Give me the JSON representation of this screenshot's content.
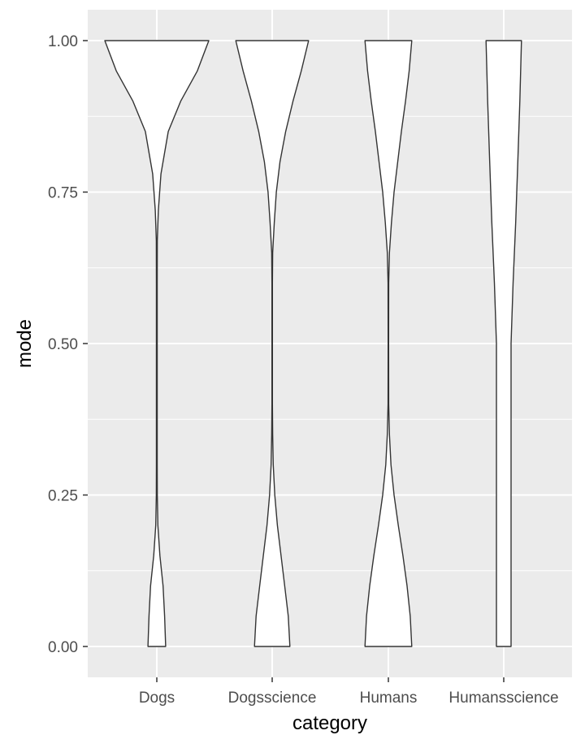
{
  "chart_data": {
    "type": "violin",
    "title": "",
    "xlabel": "category",
    "ylabel": "mode",
    "categories": [
      "Dogs",
      "Dogsscience",
      "Humans",
      "Humansscience"
    ],
    "ylim": [
      -0.05,
      1.05
    ],
    "y_ticks": [
      0,
      0.25,
      0.5,
      0.75,
      1
    ],
    "y_tick_labels": [
      "0.00",
      "0.25",
      "0.50",
      "0.75",
      "1.00"
    ],
    "grid": true,
    "panel_background": "#ebebeb",
    "grid_color": "#ffffff",
    "violin_fill": "#ffffff",
    "violin_stroke": "#333333",
    "violins": [
      {
        "category": "Dogs",
        "profile": [
          [
            0,
            0.17
          ],
          [
            0.05,
            0.15
          ],
          [
            0.1,
            0.12
          ],
          [
            0.15,
            0.06
          ],
          [
            0.2,
            0.02
          ],
          [
            0.25,
            0.01
          ],
          [
            0.3,
            0.008
          ],
          [
            0.4,
            0.008
          ],
          [
            0.5,
            0.008
          ],
          [
            0.6,
            0.008
          ],
          [
            0.67,
            0.01
          ],
          [
            0.72,
            0.03
          ],
          [
            0.78,
            0.08
          ],
          [
            0.85,
            0.22
          ],
          [
            0.9,
            0.46
          ],
          [
            0.95,
            0.78
          ],
          [
            1.0,
            1.0
          ]
        ]
      },
      {
        "category": "Dogsscience",
        "profile": [
          [
            0,
            0.34
          ],
          [
            0.05,
            0.31
          ],
          [
            0.1,
            0.24
          ],
          [
            0.15,
            0.17
          ],
          [
            0.2,
            0.1
          ],
          [
            0.25,
            0.05
          ],
          [
            0.3,
            0.02
          ],
          [
            0.35,
            0.01
          ],
          [
            0.4,
            0.005
          ],
          [
            0.5,
            0.005
          ],
          [
            0.6,
            0.005
          ],
          [
            0.65,
            0.01
          ],
          [
            0.7,
            0.04
          ],
          [
            0.75,
            0.08
          ],
          [
            0.8,
            0.15
          ],
          [
            0.85,
            0.26
          ],
          [
            0.9,
            0.4
          ],
          [
            0.95,
            0.56
          ],
          [
            1.0,
            0.7
          ]
        ]
      },
      {
        "category": "Humans",
        "profile": [
          [
            0,
            0.45
          ],
          [
            0.05,
            0.42
          ],
          [
            0.1,
            0.36
          ],
          [
            0.15,
            0.28
          ],
          [
            0.2,
            0.19
          ],
          [
            0.25,
            0.11
          ],
          [
            0.3,
            0.05
          ],
          [
            0.35,
            0.02
          ],
          [
            0.4,
            0.006
          ],
          [
            0.5,
            0.005
          ],
          [
            0.6,
            0.006
          ],
          [
            0.65,
            0.02
          ],
          [
            0.7,
            0.06
          ],
          [
            0.75,
            0.11
          ],
          [
            0.8,
            0.18
          ],
          [
            0.85,
            0.25
          ],
          [
            0.9,
            0.33
          ],
          [
            0.95,
            0.4
          ],
          [
            1.0,
            0.45
          ]
        ]
      },
      {
        "category": "Humansscience",
        "profile": [
          [
            0,
            0.14
          ],
          [
            0.1,
            0.14
          ],
          [
            0.2,
            0.14
          ],
          [
            0.3,
            0.14
          ],
          [
            0.4,
            0.14
          ],
          [
            0.5,
            0.14
          ],
          [
            0.6,
            0.18
          ],
          [
            0.7,
            0.23
          ],
          [
            0.8,
            0.27
          ],
          [
            0.9,
            0.31
          ],
          [
            1.0,
            0.34
          ]
        ]
      }
    ]
  }
}
